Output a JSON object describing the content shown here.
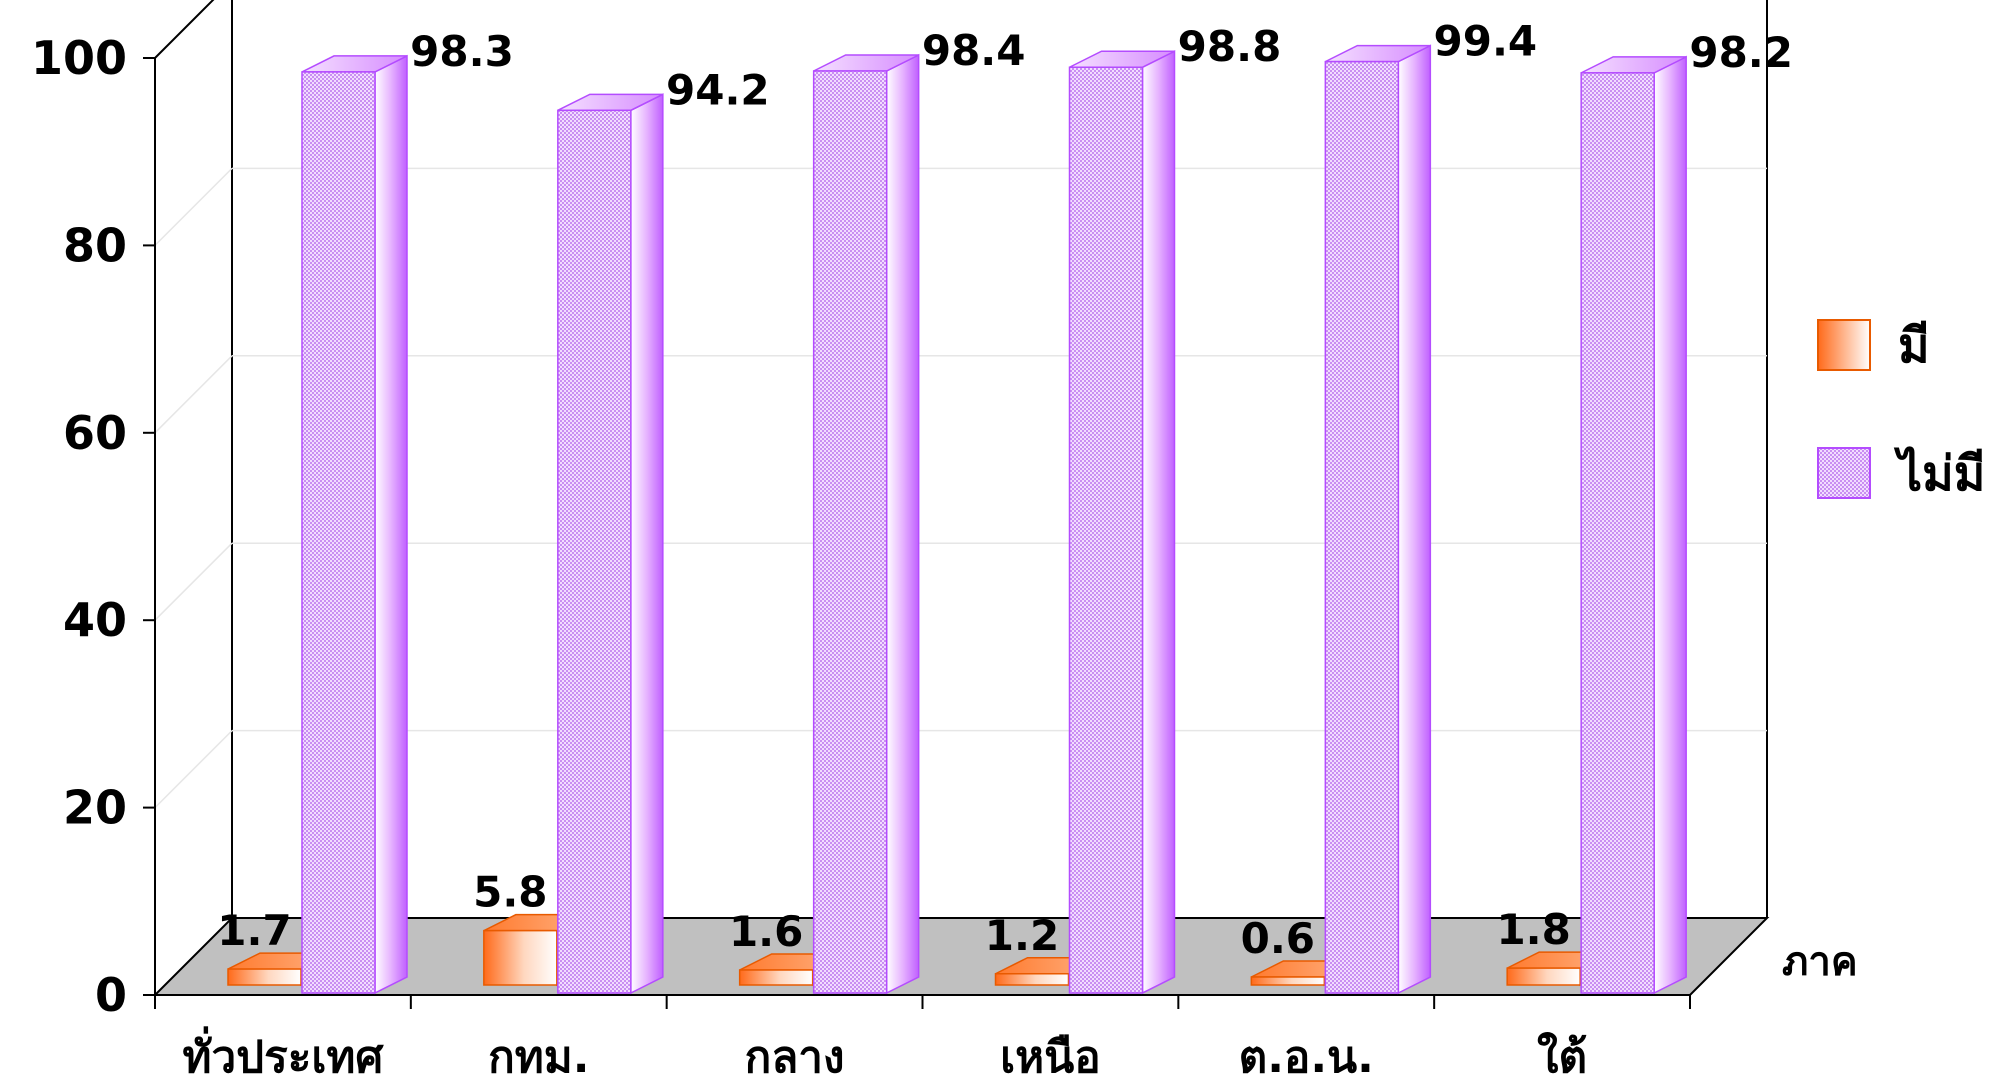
{
  "chart_data": {
    "type": "bar",
    "title": "",
    "xlabel": "ภาค",
    "ylabel": "",
    "ylim": [
      0,
      100
    ],
    "yticks": [
      0,
      20,
      40,
      60,
      80,
      100
    ],
    "categories": [
      "ทั่วประเทศ",
      "กทม.",
      "กลาง",
      "เหนือ",
      "ต.อ.น.",
      "ใต้"
    ],
    "series": [
      {
        "name": "มี",
        "values": [
          1.7,
          5.8,
          1.6,
          1.2,
          0.6,
          1.8
        ],
        "labels": [
          "1.7",
          "5.8",
          "1.6",
          "1.2",
          "0.6",
          "1.8"
        ],
        "color": "#ff6a1a"
      },
      {
        "name": "ไม่มี",
        "values": [
          98.3,
          94.2,
          98.4,
          98.8,
          99.4,
          98.2
        ],
        "labels": [
          "98.3",
          "94.2",
          "98.4",
          "98.8",
          "99.4",
          "98.2"
        ],
        "color": "#cc66ff"
      }
    ],
    "legend_position": "right",
    "grid": true,
    "style": "3d-column"
  }
}
